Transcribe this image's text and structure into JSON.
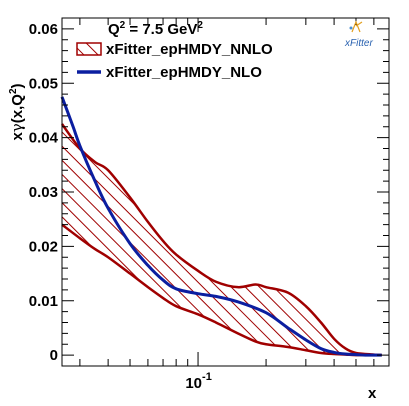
{
  "chart_data": {
    "type": "line",
    "x_scale": "log",
    "xlim": [
      0.025,
      0.7
    ],
    "ylim": [
      -0.002,
      0.062
    ],
    "xlabel": "x",
    "ylabel_parts": {
      "a": "x",
      "gamma": "γ",
      "b": "(x,Q",
      "sup": "2",
      "c": ")"
    },
    "y_ticks": [
      {
        "value": 0,
        "label": "0"
      },
      {
        "value": 0.01,
        "label": "0.01"
      },
      {
        "value": 0.02,
        "label": "0.02"
      },
      {
        "value": 0.03,
        "label": "0.03"
      },
      {
        "value": 0.04,
        "label": "0.04"
      },
      {
        "value": 0.05,
        "label": "0.05"
      },
      {
        "value": 0.06,
        "label": "0.06"
      }
    ],
    "x_tick_label": {
      "value": 0.1,
      "base": "10",
      "exp": "-1"
    },
    "annotation": {
      "prefix": "Q",
      "sup1": "2",
      "mid": " = 7.5 GeV",
      "sup2": "2"
    },
    "logo": "xFitter",
    "legend_position": "top-left",
    "series": [
      {
        "name": "xFitter_epHMDY_NNLO",
        "kind": "band",
        "color": "#a00000",
        "x": [
          0.025,
          0.03,
          0.035,
          0.04,
          0.05,
          0.06,
          0.07,
          0.08,
          0.1,
          0.12,
          0.15,
          0.18,
          0.2,
          0.25,
          0.3,
          0.35,
          0.4,
          0.45,
          0.5,
          0.6,
          0.65
        ],
        "upper": [
          0.0425,
          0.038,
          0.0355,
          0.034,
          0.029,
          0.0245,
          0.021,
          0.0185,
          0.0155,
          0.0135,
          0.0125,
          0.013,
          0.0125,
          0.0115,
          0.009,
          0.006,
          0.003,
          0.0012,
          0.0004,
          0.0001,
          0.0
        ],
        "lower": [
          0.024,
          0.0215,
          0.0195,
          0.018,
          0.015,
          0.0125,
          0.0105,
          0.009,
          0.0075,
          0.006,
          0.004,
          0.0025,
          0.002,
          0.0015,
          0.0009,
          0.0004,
          0.0002,
          0.0001,
          0.0,
          0.0,
          0.0
        ]
      },
      {
        "name": "xFitter_epHMDY_NLO",
        "kind": "line",
        "color": "#0b1ea0",
        "x": [
          0.025,
          0.028,
          0.03,
          0.035,
          0.04,
          0.05,
          0.06,
          0.07,
          0.08,
          0.1,
          0.12,
          0.15,
          0.2,
          0.25,
          0.3,
          0.35,
          0.4,
          0.45,
          0.5,
          0.55,
          0.6,
          0.65
        ],
        "y": [
          0.0475,
          0.042,
          0.0385,
          0.032,
          0.027,
          0.0205,
          0.0165,
          0.0138,
          0.0122,
          0.0113,
          0.0108,
          0.0098,
          0.0078,
          0.005,
          0.0028,
          0.0012,
          0.0005,
          0.0002,
          0.0001,
          0.0,
          0.0,
          0.0
        ]
      }
    ]
  }
}
